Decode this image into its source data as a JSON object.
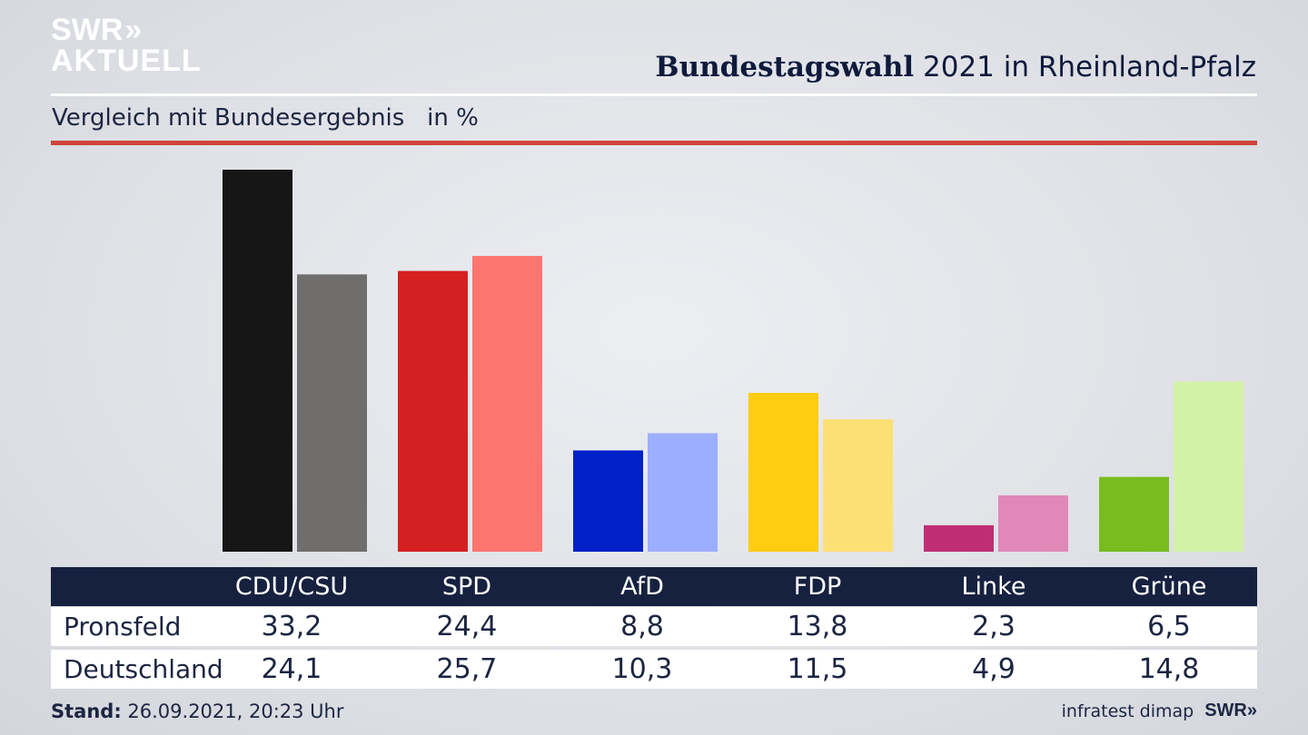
{
  "logo": {
    "line1": "SWR",
    "line1_mark": "»",
    "line2": "AKTUELL"
  },
  "header": {
    "title_bold": "Bundestagswahl",
    "title_rest": " 2021 in Rheinland-Pfalz",
    "subtitle": "Vergleich mit Bundesergebnis   in %"
  },
  "chart_data": {
    "type": "bar",
    "categories": [
      "CDU/CSU",
      "SPD",
      "AfD",
      "FDP",
      "Linke",
      "Grüne"
    ],
    "series": [
      {
        "name": "Pronsfeld",
        "values": [
          33.2,
          24.4,
          8.8,
          13.8,
          2.3,
          6.5
        ],
        "colors": [
          "#161616",
          "#d42020",
          "#0020c8",
          "#ffcc10",
          "#bf2e75",
          "#78bc20"
        ]
      },
      {
        "name": "Deutschland",
        "values": [
          24.1,
          25.7,
          10.3,
          11.5,
          4.9,
          14.8
        ],
        "colors": [
          "#6f6e6c",
          "#ff7570",
          "#9caeff",
          "#fde074",
          "#e088b8",
          "#d2f2a8"
        ]
      }
    ],
    "ylim": [
      0,
      33.2
    ]
  },
  "table": {
    "headers": [
      "CDU/CSU",
      "SPD",
      "AfD",
      "FDP",
      "Linke",
      "Grüne"
    ],
    "rows": [
      {
        "label": "Pronsfeld",
        "values": [
          "33,2",
          "24,4",
          "8,8",
          "13,8",
          "2,3",
          "6,5"
        ]
      },
      {
        "label": "Deutschland",
        "values": [
          "24,1",
          "25,7",
          "10,3",
          "11,5",
          "4,9",
          "14,8"
        ]
      }
    ]
  },
  "footer": {
    "stand_label": "Stand:",
    "stand_value": " 26.09.2021, 20:23 Uhr",
    "source": "infratest dimap",
    "brand": "SWR»"
  },
  "colors": {
    "header_bg": "#16213f",
    "accent_red": "#d0453a"
  }
}
